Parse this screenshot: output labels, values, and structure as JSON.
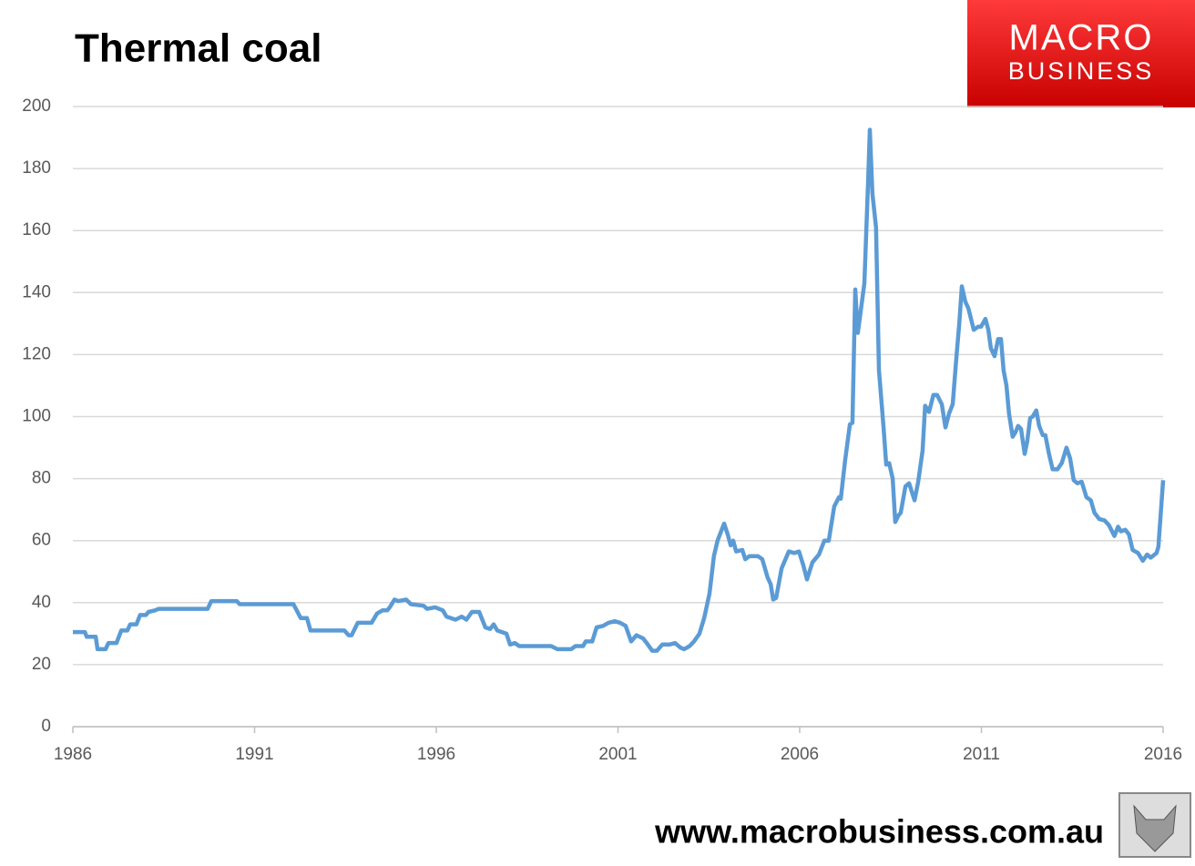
{
  "chart_data": {
    "type": "line",
    "title": "Thermal coal",
    "xlim": [
      1986,
      2016
    ],
    "xticks": [
      1986,
      1991,
      1996,
      2001,
      2006,
      2011,
      2016
    ],
    "ylim": [
      0,
      200
    ],
    "yticks": [
      0,
      20,
      40,
      60,
      80,
      100,
      120,
      140,
      160,
      180,
      200
    ],
    "grid": true,
    "x": [
      1986.0,
      1986.33,
      1986.38,
      1986.63,
      1986.68,
      1986.9,
      1986.98,
      1987.2,
      1987.33,
      1987.5,
      1987.58,
      1987.75,
      1987.85,
      1988.01,
      1988.08,
      1988.26,
      1988.36,
      1989.71,
      1989.81,
      1990.51,
      1990.59,
      1992.07,
      1992.27,
      1992.44,
      1992.54,
      1993.47,
      1993.59,
      1993.67,
      1993.84,
      1994.22,
      1994.37,
      1994.52,
      1994.65,
      1994.72,
      1994.85,
      1994.95,
      1995.17,
      1995.3,
      1995.65,
      1995.75,
      1995.97,
      1996.18,
      1996.28,
      1996.53,
      1996.7,
      1996.83,
      1996.98,
      1997.18,
      1997.35,
      1997.48,
      1997.58,
      1997.68,
      1997.93,
      1998.03,
      1998.16,
      1998.28,
      1999.16,
      1999.33,
      1999.71,
      1999.83,
      2000.04,
      2000.11,
      2000.29,
      2000.41,
      2000.59,
      2000.74,
      2000.91,
      2001.06,
      2001.21,
      2001.36,
      2001.51,
      2001.69,
      2001.79,
      2001.94,
      2002.07,
      2002.22,
      2002.42,
      2002.57,
      2002.72,
      2002.82,
      2002.97,
      2003.09,
      2003.24,
      2003.37,
      2003.52,
      2003.64,
      2003.74,
      2003.92,
      2004.02,
      2004.1,
      2004.17,
      2004.25,
      2004.42,
      2004.5,
      2004.62,
      2004.85,
      2004.97,
      2005.12,
      2005.2,
      2005.27,
      2005.35,
      2005.5,
      2005.7,
      2005.85,
      2005.98,
      2006.1,
      2006.2,
      2006.35,
      2006.53,
      2006.68,
      2006.8,
      2006.95,
      2007.08,
      2007.13,
      2007.25,
      2007.38,
      2007.45,
      2007.53,
      2007.6,
      2007.68,
      2007.78,
      2007.88,
      2007.93,
      2008.0,
      2008.1,
      2008.18,
      2008.31,
      2008.38,
      2008.46,
      2008.56,
      2008.63,
      2008.71,
      2008.78,
      2008.91,
      2009.01,
      2009.16,
      2009.26,
      2009.38,
      2009.45,
      2009.56,
      2009.68,
      2009.78,
      2009.91,
      2010.01,
      2010.11,
      2010.21,
      2010.31,
      2010.39,
      2010.46,
      2010.56,
      2010.64,
      2010.79,
      2010.91,
      2010.99,
      2011.11,
      2011.19,
      2011.26,
      2011.36,
      2011.46,
      2011.54,
      2011.61,
      2011.69,
      2011.76,
      2011.86,
      2011.94,
      2012.01,
      2012.09,
      2012.19,
      2012.26,
      2012.34,
      2012.41,
      2012.51,
      2012.59,
      2012.69,
      2012.76,
      2012.86,
      2012.96,
      2013.09,
      2013.21,
      2013.34,
      2013.44,
      2013.54,
      2013.64,
      2013.76,
      2013.89,
      2014.01,
      2014.11,
      2014.24,
      2014.39,
      2014.51,
      2014.66,
      2014.76,
      2014.84,
      2014.96,
      2015.06,
      2015.16,
      2015.31,
      2015.44,
      2015.56,
      2015.66,
      2015.82,
      2015.87,
      2016.0
    ],
    "series": [
      {
        "name": "Thermal coal",
        "color": "#5b9bd5",
        "values": [
          30.5,
          30.5,
          29,
          29,
          25,
          25,
          27,
          27,
          31,
          31,
          33,
          33,
          36,
          36,
          37,
          37.5,
          38,
          38,
          40.5,
          40.5,
          39.5,
          39.5,
          35,
          35,
          31,
          31,
          29.5,
          29.5,
          33.5,
          33.5,
          36.5,
          37.5,
          37.5,
          38.5,
          41,
          40.5,
          41,
          39.5,
          39,
          38,
          38.5,
          37.5,
          35.5,
          34.5,
          35.5,
          34.5,
          37,
          37,
          32,
          31.5,
          33,
          31,
          30,
          26.5,
          27,
          26,
          26,
          25,
          25,
          26,
          26,
          27.5,
          27.5,
          32,
          32.5,
          33.5,
          34,
          33.5,
          32.5,
          27.5,
          29.5,
          28.5,
          27,
          24.5,
          24.5,
          26.5,
          26.5,
          27,
          25.5,
          25,
          26,
          27.5,
          30,
          35,
          43,
          55,
          60,
          65.5,
          62,
          58.5,
          60,
          56.5,
          57,
          54,
          55,
          55,
          54,
          48,
          46,
          41,
          41.5,
          51,
          56.5,
          56,
          56.5,
          52,
          47.5,
          53,
          55.5,
          60,
          60,
          71,
          74,
          73.5,
          86,
          97.5,
          98,
          141,
          127,
          134,
          143,
          175,
          192.5,
          172,
          161,
          115,
          96,
          84.5,
          85,
          80,
          66,
          68,
          69,
          77.5,
          78.5,
          73,
          79,
          89,
          103.5,
          101.5,
          107,
          107,
          104,
          96.5,
          101,
          104,
          119,
          130,
          142,
          137,
          135,
          128,
          129,
          129,
          131.5,
          128,
          122,
          119.5,
          125,
          125,
          115,
          110,
          101,
          93.5,
          95,
          97,
          96,
          88,
          92,
          99.5,
          100,
          102,
          97,
          94,
          94,
          88,
          83,
          83,
          85,
          90,
          86.5,
          79.5,
          78.5,
          79,
          74,
          73,
          69,
          67,
          66.5,
          65,
          61.5,
          64.5,
          63,
          63.5,
          62,
          57,
          56,
          53.5,
          55.5,
          54.5,
          56,
          58,
          79.5
        ]
      }
    ]
  },
  "logo": {
    "line1": "MACRO",
    "line2": "BUSINESS"
  },
  "footer": "www.macrobusiness.com.au"
}
